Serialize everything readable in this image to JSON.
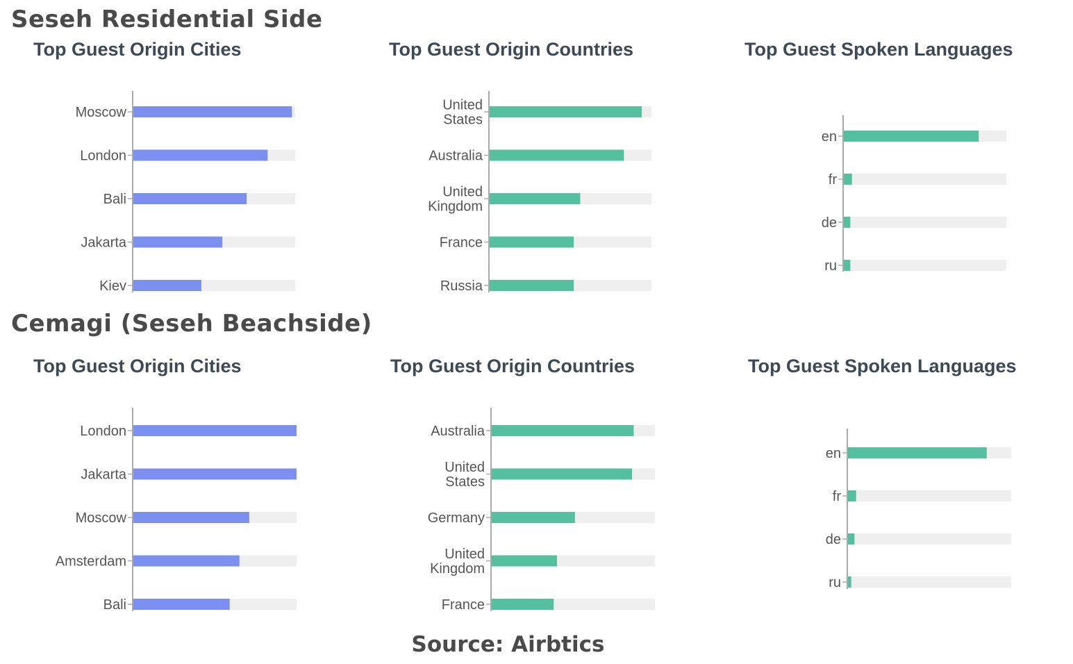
{
  "sections": [
    {
      "title": "Seseh Residential Side"
    },
    {
      "title": "Cemagi (Seseh Beachside)"
    }
  ],
  "source": "Source: Airbtics",
  "colors": {
    "cities": "#7b8ff0",
    "countries": "#54c0a0",
    "track": "#efefef",
    "axis": "#aaaaaa",
    "label": "#555555"
  },
  "chart_data": [
    {
      "type": "bar",
      "orientation": "horizontal",
      "title": "Top Guest Origin Cities",
      "categories": [
        [
          "Moscow"
        ],
        [
          "London"
        ],
        [
          "Bali"
        ],
        [
          "Jakarta"
        ],
        [
          "Kiev"
        ]
      ],
      "values": [
        98,
        83,
        70,
        55,
        42
      ],
      "xlim": [
        0,
        100
      ]
    },
    {
      "type": "bar",
      "orientation": "horizontal",
      "title": "Top Guest Origin Countries",
      "categories": [
        [
          "United",
          "States"
        ],
        [
          "Australia"
        ],
        [
          "United",
          "Kingdom"
        ],
        [
          "France"
        ],
        [
          "Russia"
        ]
      ],
      "values": [
        94,
        83,
        56,
        52,
        52
      ],
      "xlim": [
        0,
        100
      ]
    },
    {
      "type": "bar",
      "orientation": "horizontal",
      "title": "Top Guest Spoken Languages",
      "categories": [
        [
          "en"
        ],
        [
          "fr"
        ],
        [
          "de"
        ],
        [
          "ru"
        ]
      ],
      "values": [
        83,
        5,
        4,
        4
      ],
      "xlim": [
        0,
        100
      ]
    },
    {
      "type": "bar",
      "orientation": "horizontal",
      "title": "Top Guest Origin Cities",
      "categories": [
        [
          "London"
        ],
        [
          "Jakarta"
        ],
        [
          "Moscow"
        ],
        [
          "Amsterdam"
        ],
        [
          "Bali"
        ]
      ],
      "values": [
        100,
        100,
        71,
        65,
        59
      ],
      "xlim": [
        0,
        100
      ]
    },
    {
      "type": "bar",
      "orientation": "horizontal",
      "title": "Top Guest Origin Countries",
      "categories": [
        [
          "Australia"
        ],
        [
          "United",
          "States"
        ],
        [
          "Germany"
        ],
        [
          "United",
          "Kingdom"
        ],
        [
          "France"
        ]
      ],
      "values": [
        87,
        86,
        51,
        40,
        38
      ],
      "xlim": [
        0,
        100
      ]
    },
    {
      "type": "bar",
      "orientation": "horizontal",
      "title": "Top Guest Spoken Languages",
      "categories": [
        [
          "en"
        ],
        [
          "fr"
        ],
        [
          "de"
        ],
        [
          "ru"
        ]
      ],
      "values": [
        85,
        5,
        4,
        2
      ],
      "xlim": [
        0,
        100
      ]
    }
  ]
}
